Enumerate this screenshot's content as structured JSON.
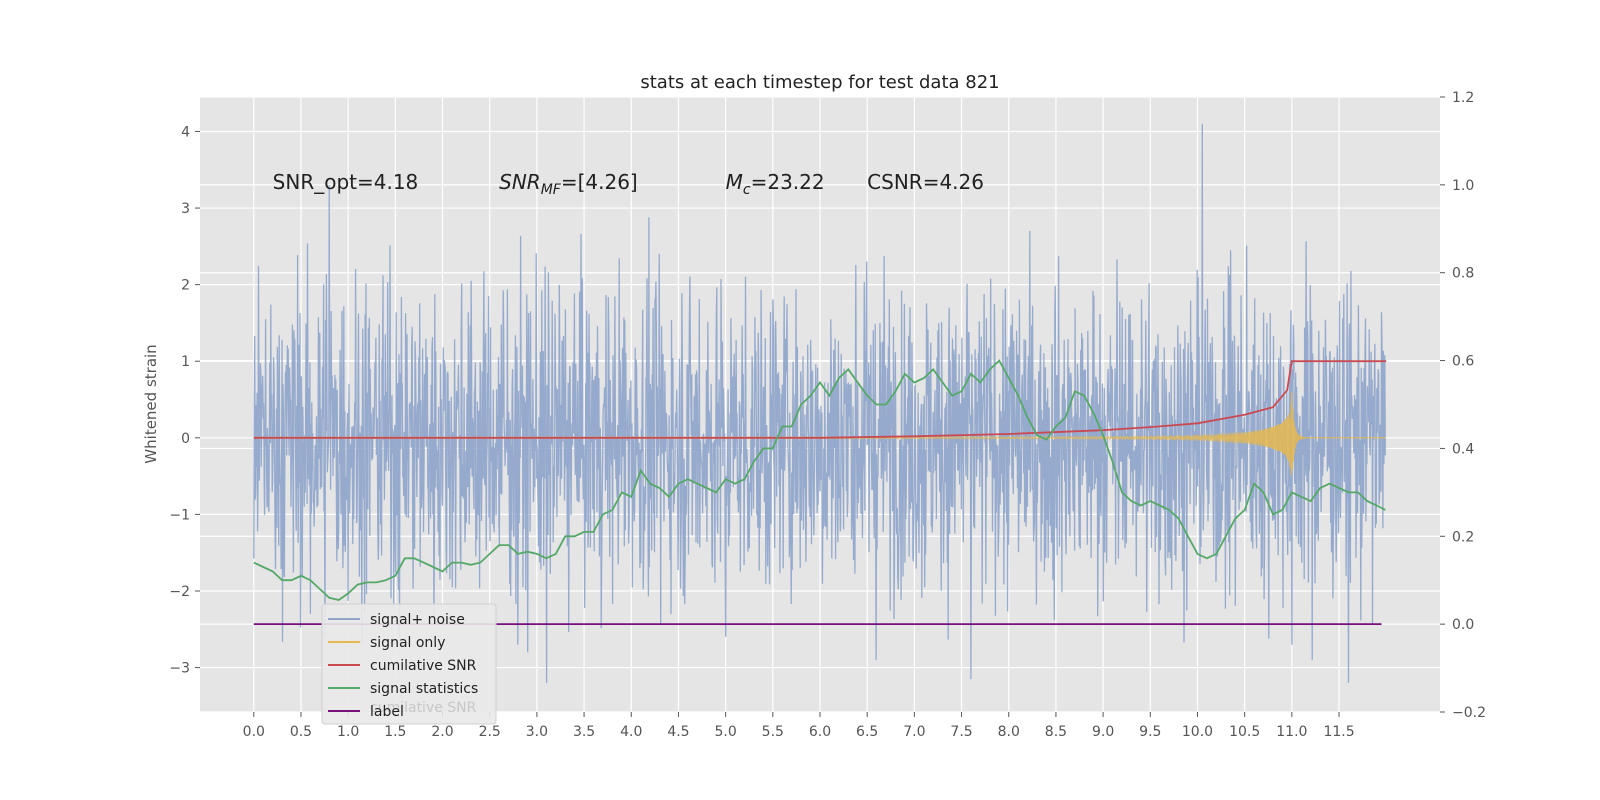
{
  "chart_data": {
    "type": "line",
    "title": "stats at each timestep for test data 821",
    "ylabel": "Whitened strain",
    "xlim": [
      -0.57,
      12.57
    ],
    "ylim": [
      -3.58,
      4.45
    ],
    "y2lim": [
      -0.2,
      1.2
    ],
    "x_ticks": [
      0.0,
      0.5,
      1.0,
      1.5,
      2.0,
      2.5,
      3.0,
      3.5,
      4.0,
      4.5,
      5.0,
      5.5,
      6.0,
      6.5,
      7.0,
      7.5,
      8.0,
      8.5,
      9.0,
      9.5,
      10.0,
      10.5,
      11.0,
      11.5
    ],
    "x_tick_labels": [
      "0.0",
      "0.5",
      "1.0",
      "1.5",
      "2.0",
      "2.5",
      "3.0",
      "3.5",
      "4.0",
      "4.5",
      "5.0",
      "5.5",
      "6.0",
      "6.5",
      "7.0",
      "7.5",
      "8.0",
      "8.5",
      "9.0",
      "9.5",
      "10.0",
      "10.5",
      "11.0",
      "11.5"
    ],
    "y_ticks": [
      -3,
      -2,
      -1,
      0,
      1,
      2,
      3,
      4
    ],
    "y_tick_labels": [
      "−3",
      "−2",
      "−1",
      "0",
      "1",
      "2",
      "3",
      "4"
    ],
    "y2_ticks": [
      -0.2,
      0.0,
      0.2,
      0.4,
      0.6,
      0.8,
      1.0,
      1.2
    ],
    "y2_tick_labels": [
      "−0.2",
      "0.0",
      "0.2",
      "0.4",
      "0.6",
      "0.8",
      "1.0",
      "1.2"
    ],
    "grid": true,
    "legend_position": "lower-left",
    "annotations": [
      {
        "text": "SNR_opt=4.18",
        "x": 0.2
      },
      {
        "text": "SNR_MF=[4.26]",
        "x": 2.6
      },
      {
        "text": "M_c=23.22",
        "x": 5.0
      },
      {
        "text": "CSNR=4.26",
        "x": 6.5
      }
    ],
    "annotation_y": 3.25,
    "series": [
      {
        "name": "signal+ noise",
        "axis": "left",
        "color": "#8fa5cb",
        "t_end": 11.99,
        "spikes": [
          [
            0.8,
            3.3
          ],
          [
            0.6,
            -2.3
          ],
          [
            3.1,
            -3.2
          ],
          [
            2.8,
            -2.7
          ],
          [
            5.0,
            -2.6
          ],
          [
            6.0,
            -0.7
          ],
          [
            7.6,
            -3.15
          ],
          [
            10.05,
            4.1
          ],
          [
            10.35,
            2.45
          ],
          [
            11.0,
            -2.7
          ],
          [
            11.6,
            -3.2
          ],
          [
            12.0,
            1.9
          ]
        ]
      },
      {
        "name": "signal only",
        "axis": "left",
        "color": "#e6b94f",
        "merger_t": 11.0
      },
      {
        "name": "cumilative SNR",
        "axis": "left",
        "color": "#c94a53",
        "points": [
          [
            0.0,
            0.0
          ],
          [
            6.0,
            0.0
          ],
          [
            7.0,
            0.02
          ],
          [
            8.0,
            0.05
          ],
          [
            9.0,
            0.1
          ],
          [
            9.5,
            0.14
          ],
          [
            10.0,
            0.19
          ],
          [
            10.5,
            0.3
          ],
          [
            10.8,
            0.4
          ],
          [
            10.95,
            0.62
          ],
          [
            11.0,
            1.0
          ],
          [
            12.0,
            1.0
          ]
        ]
      },
      {
        "name": "signal statistics",
        "axis": "right",
        "color": "#55a868",
        "points": [
          [
            0.0,
            0.14
          ],
          [
            0.1,
            0.13
          ],
          [
            0.2,
            0.12
          ],
          [
            0.3,
            0.1
          ],
          [
            0.4,
            0.1
          ],
          [
            0.5,
            0.11
          ],
          [
            0.6,
            0.1
          ],
          [
            0.7,
            0.08
          ],
          [
            0.8,
            0.06
          ],
          [
            0.9,
            0.055
          ],
          [
            1.0,
            0.07
          ],
          [
            1.1,
            0.09
          ],
          [
            1.2,
            0.095
          ],
          [
            1.3,
            0.095
          ],
          [
            1.4,
            0.1
          ],
          [
            1.5,
            0.11
          ],
          [
            1.6,
            0.15
          ],
          [
            1.7,
            0.15
          ],
          [
            1.8,
            0.14
          ],
          [
            1.9,
            0.13
          ],
          [
            2.0,
            0.12
          ],
          [
            2.1,
            0.14
          ],
          [
            2.2,
            0.14
          ],
          [
            2.3,
            0.135
          ],
          [
            2.4,
            0.14
          ],
          [
            2.5,
            0.16
          ],
          [
            2.6,
            0.18
          ],
          [
            2.7,
            0.18
          ],
          [
            2.8,
            0.16
          ],
          [
            2.9,
            0.165
          ],
          [
            3.0,
            0.16
          ],
          [
            3.1,
            0.15
          ],
          [
            3.2,
            0.16
          ],
          [
            3.3,
            0.2
          ],
          [
            3.4,
            0.2
          ],
          [
            3.5,
            0.21
          ],
          [
            3.6,
            0.21
          ],
          [
            3.7,
            0.25
          ],
          [
            3.8,
            0.26
          ],
          [
            3.9,
            0.3
          ],
          [
            4.0,
            0.29
          ],
          [
            4.1,
            0.35
          ],
          [
            4.2,
            0.32
          ],
          [
            4.3,
            0.31
          ],
          [
            4.4,
            0.29
          ],
          [
            4.5,
            0.32
          ],
          [
            4.6,
            0.33
          ],
          [
            4.7,
            0.32
          ],
          [
            4.8,
            0.31
          ],
          [
            4.9,
            0.3
          ],
          [
            5.0,
            0.33
          ],
          [
            5.1,
            0.32
          ],
          [
            5.2,
            0.33
          ],
          [
            5.3,
            0.37
          ],
          [
            5.4,
            0.4
          ],
          [
            5.5,
            0.4
          ],
          [
            5.6,
            0.45
          ],
          [
            5.7,
            0.45
          ],
          [
            5.8,
            0.5
          ],
          [
            5.9,
            0.52
          ],
          [
            6.0,
            0.55
          ],
          [
            6.1,
            0.52
          ],
          [
            6.2,
            0.56
          ],
          [
            6.3,
            0.58
          ],
          [
            6.4,
            0.55
          ],
          [
            6.5,
            0.52
          ],
          [
            6.6,
            0.5
          ],
          [
            6.7,
            0.5
          ],
          [
            6.8,
            0.53
          ],
          [
            6.9,
            0.57
          ],
          [
            7.0,
            0.55
          ],
          [
            7.1,
            0.56
          ],
          [
            7.2,
            0.58
          ],
          [
            7.3,
            0.55
          ],
          [
            7.4,
            0.52
          ],
          [
            7.5,
            0.53
          ],
          [
            7.6,
            0.57
          ],
          [
            7.7,
            0.55
          ],
          [
            7.8,
            0.58
          ],
          [
            7.9,
            0.6
          ],
          [
            8.0,
            0.56
          ],
          [
            8.1,
            0.52
          ],
          [
            8.2,
            0.47
          ],
          [
            8.3,
            0.43
          ],
          [
            8.4,
            0.42
          ],
          [
            8.5,
            0.45
          ],
          [
            8.6,
            0.47
          ],
          [
            8.7,
            0.53
          ],
          [
            8.8,
            0.52
          ],
          [
            8.9,
            0.48
          ],
          [
            9.0,
            0.43
          ],
          [
            9.1,
            0.37
          ],
          [
            9.2,
            0.3
          ],
          [
            9.3,
            0.28
          ],
          [
            9.4,
            0.27
          ],
          [
            9.5,
            0.28
          ],
          [
            9.6,
            0.27
          ],
          [
            9.7,
            0.26
          ],
          [
            9.8,
            0.24
          ],
          [
            9.9,
            0.2
          ],
          [
            10.0,
            0.16
          ],
          [
            10.1,
            0.15
          ],
          [
            10.2,
            0.16
          ],
          [
            10.3,
            0.2
          ],
          [
            10.4,
            0.24
          ],
          [
            10.5,
            0.26
          ],
          [
            10.6,
            0.32
          ],
          [
            10.7,
            0.3
          ],
          [
            10.8,
            0.25
          ],
          [
            10.9,
            0.26
          ],
          [
            11.0,
            0.3
          ],
          [
            11.1,
            0.29
          ],
          [
            11.2,
            0.28
          ],
          [
            11.3,
            0.31
          ],
          [
            11.4,
            0.32
          ],
          [
            11.5,
            0.31
          ],
          [
            11.6,
            0.3
          ],
          [
            11.7,
            0.3
          ],
          [
            11.8,
            0.28
          ],
          [
            11.9,
            0.27
          ],
          [
            11.99,
            0.26
          ]
        ]
      },
      {
        "name": "label",
        "axis": "right",
        "color": "#77107b",
        "points": [
          [
            0.0,
            0.0
          ],
          [
            11.95,
            0.0
          ]
        ]
      }
    ],
    "legend_ghost_text": "cumilative SNR"
  }
}
